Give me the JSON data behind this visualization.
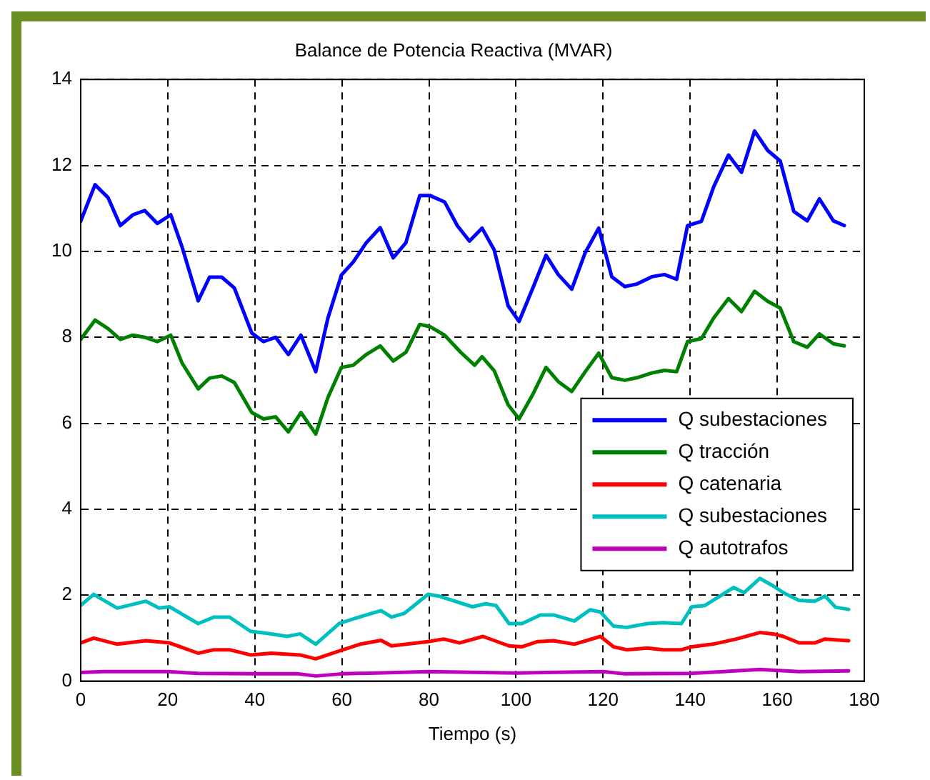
{
  "chart_data": {
    "type": "line",
    "title": "Balance de Potencia Reactiva (MVAR)",
    "xlabel": "Tiempo (s)",
    "xlim": [
      0,
      180
    ],
    "xticks": [
      0,
      20,
      40,
      60,
      80,
      100,
      120,
      140,
      160,
      180
    ],
    "ylim": [
      0,
      14
    ],
    "yticks": [
      0,
      2,
      4,
      6,
      8,
      10,
      12,
      14
    ],
    "grid": true,
    "legend": "right",
    "marker": "none",
    "line_style": "solid",
    "series": [
      {
        "name": "Q subestaciones",
        "color": "#0000ff",
        "x": [
          0,
          3.3,
          6.3,
          9.1,
          12,
          14.7,
          17.6,
          20.7,
          23.3,
          27,
          29.6,
          32.4,
          35.3,
          39.3,
          42,
          44.8,
          47.7,
          50.6,
          54,
          56.8,
          59.9,
          62.6,
          65.6,
          68.8,
          71.8,
          74.7,
          77.9,
          80.2,
          83.6,
          86.5,
          89.3,
          92.2,
          95,
          98.2,
          100.7,
          104,
          106.9,
          109.7,
          112.8,
          115.9,
          119,
          122,
          125,
          127.8,
          131.2,
          134.1,
          136.9,
          139.4,
          142.6,
          145.4,
          148.8,
          151.8,
          154.8,
          157.8,
          160.7,
          163.8,
          166.9,
          169.7,
          172.9,
          175.4
        ],
        "values": [
          10.7,
          11.55,
          11.25,
          10.6,
          10.85,
          10.95,
          10.65,
          10.85,
          10.1,
          8.85,
          9.4,
          9.4,
          9.15,
          8.1,
          7.9,
          8.0,
          7.6,
          8.05,
          7.2,
          8.45,
          9.45,
          9.75,
          10.2,
          10.55,
          9.85,
          10.2,
          11.3,
          11.3,
          11.15,
          10.6,
          10.24,
          10.54,
          10.03,
          8.73,
          8.37,
          9.18,
          9.91,
          9.46,
          9.12,
          9.97,
          10.54,
          9.41,
          9.18,
          9.24,
          9.41,
          9.46,
          9.35,
          10.6,
          10.7,
          11.5,
          12.24,
          11.84,
          12.8,
          12.35,
          12.1,
          10.93,
          10.71,
          11.22,
          10.71,
          10.6
        ]
      },
      {
        "name": "Q tracción",
        "color": "#008000",
        "x": [
          0,
          3.3,
          6.3,
          9.1,
          12,
          14.7,
          17.6,
          20.7,
          23.3,
          27,
          29.6,
          32.4,
          35.3,
          39.3,
          42,
          44.8,
          47.7,
          50.6,
          54,
          56.8,
          59.9,
          62.6,
          65.6,
          68.8,
          71.8,
          74.7,
          77.9,
          80.2,
          83.6,
          87.3,
          90.5,
          92.2,
          95,
          98.2,
          100.7,
          104,
          106.9,
          109.7,
          112.8,
          115.9,
          119,
          122,
          125,
          127.8,
          131.2,
          134.1,
          136.9,
          139.4,
          142.6,
          145.4,
          148.8,
          151.8,
          154.8,
          157.8,
          160.7,
          163.8,
          166.9,
          169.7,
          172.9,
          175.4
        ],
        "values": [
          7.95,
          8.4,
          8.2,
          7.95,
          8.05,
          8.0,
          7.9,
          8.05,
          7.4,
          6.8,
          7.05,
          7.1,
          6.95,
          6.25,
          6.1,
          6.15,
          5.8,
          6.25,
          5.75,
          6.6,
          7.3,
          7.35,
          7.6,
          7.8,
          7.45,
          7.65,
          8.3,
          8.25,
          8.05,
          7.65,
          7.35,
          7.55,
          7.22,
          6.43,
          6.1,
          6.7,
          7.3,
          6.97,
          6.74,
          7.2,
          7.63,
          7.06,
          7.0,
          7.06,
          7.17,
          7.23,
          7.2,
          7.9,
          7.97,
          8.45,
          8.9,
          8.6,
          9.07,
          8.84,
          8.68,
          7.9,
          7.77,
          8.08,
          7.85,
          7.8
        ]
      },
      {
        "name": "Q catenaria",
        "color": "#ff0000",
        "x": [
          0,
          3,
          8.4,
          15,
          20.4,
          27,
          30.6,
          34.2,
          39,
          43.8,
          50.4,
          54,
          59.4,
          64.2,
          69,
          71.4,
          79.8,
          83.4,
          87,
          92.4,
          98.4,
          101.4,
          105,
          108.6,
          113.4,
          119.4,
          122.4,
          125.4,
          130.2,
          133.8,
          138,
          140.4,
          145.2,
          150.6,
          156,
          159,
          161.4,
          165,
          168.6,
          171,
          176.4
        ],
        "values": [
          0.89,
          1.0,
          0.86,
          0.94,
          0.89,
          0.65,
          0.73,
          0.73,
          0.61,
          0.65,
          0.61,
          0.52,
          0.7,
          0.86,
          0.95,
          0.82,
          0.92,
          0.98,
          0.89,
          1.04,
          0.82,
          0.8,
          0.92,
          0.94,
          0.86,
          1.04,
          0.8,
          0.73,
          0.77,
          0.73,
          0.73,
          0.8,
          0.86,
          0.98,
          1.13,
          1.1,
          1.04,
          0.89,
          0.89,
          0.98,
          0.94
        ]
      },
      {
        "name": "Q subestaciones",
        "color": "#00bfbf",
        "x": [
          0,
          3,
          8.4,
          15,
          18,
          20.4,
          27,
          30.6,
          34.2,
          39,
          43.8,
          47.4,
          50.4,
          54,
          59.4,
          63,
          69,
          71.4,
          74.4,
          79.8,
          82.2,
          90,
          93,
          95.4,
          98.4,
          101.4,
          105.6,
          108.6,
          113.4,
          117,
          119.4,
          122.4,
          125.4,
          130.2,
          133.8,
          138,
          140.4,
          143.4,
          150,
          152.4,
          156,
          159,
          161.4,
          165,
          168.6,
          171,
          173.4,
          176.4
        ],
        "values": [
          1.76,
          2.02,
          1.7,
          1.86,
          1.7,
          1.73,
          1.34,
          1.49,
          1.49,
          1.16,
          1.1,
          1.04,
          1.1,
          0.86,
          1.34,
          1.46,
          1.64,
          1.49,
          1.58,
          2.02,
          1.98,
          1.73,
          1.8,
          1.76,
          1.34,
          1.34,
          1.54,
          1.54,
          1.4,
          1.66,
          1.61,
          1.28,
          1.25,
          1.34,
          1.36,
          1.34,
          1.73,
          1.76,
          2.18,
          2.06,
          2.39,
          2.22,
          2.06,
          1.88,
          1.86,
          1.98,
          1.72,
          1.67
        ]
      },
      {
        "name": "Q autotrafos",
        "color": "#bf00bf",
        "x": [
          0,
          5,
          20,
          27,
          40,
          50,
          54,
          60,
          80,
          100,
          120,
          125,
          140,
          156,
          165,
          176.4
        ],
        "values": [
          0.2,
          0.22,
          0.22,
          0.18,
          0.17,
          0.17,
          0.12,
          0.17,
          0.22,
          0.19,
          0.22,
          0.17,
          0.18,
          0.27,
          0.22,
          0.24
        ]
      }
    ]
  }
}
